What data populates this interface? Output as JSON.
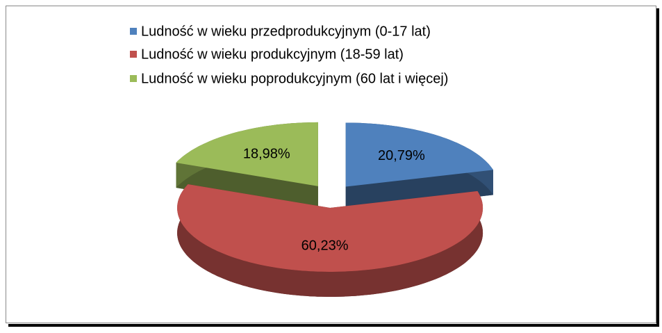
{
  "chart_data": {
    "type": "pie",
    "categories": [
      "Ludność w wieku przedprodukcyjnym (0-17 lat)",
      "Ludność w wieku produkcyjnym (18-59 lat)",
      "Ludność w wieku poprodukcyjnym (60 lat i więcej)"
    ],
    "values": [
      20.79,
      60.23,
      18.98
    ],
    "value_labels": [
      "20,79%",
      "60,23%",
      "18,98%"
    ],
    "colors": [
      "#4f81bd",
      "#c0504d",
      "#9bbb59"
    ],
    "legend": "top"
  }
}
